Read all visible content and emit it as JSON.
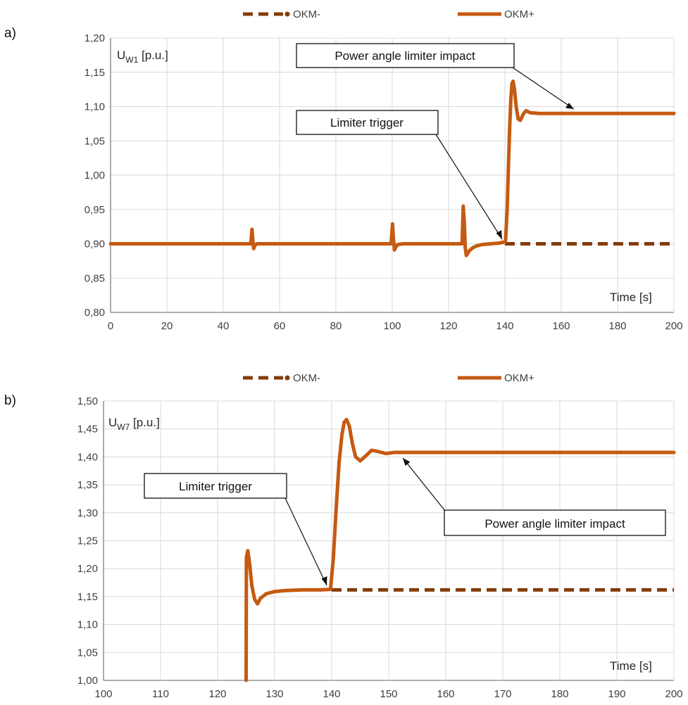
{
  "colors": {
    "okm_minus": "#843C0C",
    "okm_plus": "#C55A11",
    "grid": "#D9D9D9",
    "axis": "#7F7F7F"
  },
  "chart_data": [
    {
      "type": "line",
      "panel_label": "a)",
      "ylabel_main": "U",
      "ylabel_sub": "W1",
      "ylabel_unit": " [p.u.]",
      "xlabel": "Time [s]",
      "xlim": [
        0,
        200
      ],
      "ylim": [
        0.8,
        1.2
      ],
      "xticks": [
        0,
        20,
        40,
        60,
        80,
        100,
        120,
        140,
        160,
        180,
        200
      ],
      "yticks": [
        0.8,
        0.85,
        0.9,
        0.95,
        1.0,
        1.05,
        1.1,
        1.15,
        1.2
      ],
      "ytick_labels": [
        "0,80",
        "0,85",
        "0,90",
        "0,95",
        "1,00",
        "1,05",
        "1,10",
        "1,15",
        "1,20"
      ],
      "grid": true,
      "legend": [
        "OKM-",
        "OKM+"
      ],
      "legend_position": "top",
      "series": [
        {
          "name": "OKM-",
          "style": "dashed",
          "x": [
            140,
            200
          ],
          "y": [
            0.9,
            0.9
          ]
        },
        {
          "name": "OKM+",
          "style": "solid",
          "x": [
            0,
            49.8,
            50.2,
            50.5,
            50.8,
            51.3,
            52,
            99.6,
            100.1,
            100.4,
            100.8,
            101.2,
            102,
            104,
            124.8,
            125.2,
            125.6,
            125.9,
            126.3,
            126.8,
            127.4,
            128.5,
            130,
            132,
            135,
            138,
            140.2,
            140.8,
            141.3,
            141.7,
            142.1,
            142.5,
            142.9,
            143.4,
            144,
            144.7,
            145.5,
            146.5,
            147.5,
            149,
            152,
            200
          ],
          "y": [
            0.9,
            0.9,
            0.921,
            0.905,
            0.893,
            0.898,
            0.9,
            0.9,
            0.929,
            0.908,
            0.891,
            0.895,
            0.899,
            0.9,
            0.9,
            0.955,
            0.93,
            0.895,
            0.883,
            0.886,
            0.89,
            0.894,
            0.897,
            0.899,
            0.9,
            0.901,
            0.903,
            0.95,
            1.02,
            1.07,
            1.11,
            1.133,
            1.137,
            1.125,
            1.1,
            1.082,
            1.08,
            1.089,
            1.094,
            1.091,
            1.09,
            1.09
          ]
        }
      ],
      "annotations": [
        {
          "text": "Power angle limiter impact",
          "target": [
            166,
            1.09
          ]
        },
        {
          "text": "Limiter trigger",
          "target": [
            140,
            0.902
          ]
        }
      ]
    },
    {
      "type": "line",
      "panel_label": "b)",
      "ylabel_main": "U",
      "ylabel_sub": "W7",
      "ylabel_unit": " [p.u.]",
      "xlabel": "Time [s]",
      "xlim": [
        100,
        200
      ],
      "ylim": [
        1.0,
        1.5
      ],
      "xticks": [
        100,
        110,
        120,
        130,
        140,
        150,
        160,
        170,
        180,
        190,
        200
      ],
      "yticks": [
        1.0,
        1.05,
        1.1,
        1.15,
        1.2,
        1.25,
        1.3,
        1.35,
        1.4,
        1.45,
        1.5
      ],
      "ytick_labels": [
        "1,00",
        "1,05",
        "1,10",
        "1,15",
        "1,20",
        "1,25",
        "1,30",
        "1,35",
        "1,40",
        "1,45",
        "1,50"
      ],
      "grid": true,
      "legend": [
        "OKM-",
        "OKM+"
      ],
      "legend_position": "top",
      "series": [
        {
          "name": "OKM-",
          "style": "dashed",
          "x": [
            140,
            200
          ],
          "y": [
            1.162,
            1.162
          ]
        },
        {
          "name": "OKM+",
          "style": "solid",
          "x": [
            125,
            125.05,
            125.3,
            125.6,
            126,
            126.5,
            127,
            127.5,
            128.5,
            130,
            132,
            135,
            138,
            139.8,
            140.3,
            140.8,
            141.3,
            141.8,
            142.2,
            142.6,
            143.1,
            143.6,
            144.2,
            145,
            146,
            147,
            148,
            149.5,
            151,
            200
          ],
          "y": [
            1.0,
            1.22,
            1.232,
            1.21,
            1.17,
            1.145,
            1.137,
            1.147,
            1.155,
            1.159,
            1.161,
            1.162,
            1.162,
            1.163,
            1.22,
            1.31,
            1.39,
            1.44,
            1.462,
            1.467,
            1.455,
            1.425,
            1.4,
            1.393,
            1.402,
            1.412,
            1.41,
            1.406,
            1.408,
            1.408
          ]
        }
      ],
      "annotations": [
        {
          "text": "Limiter trigger",
          "target": [
            140,
            1.162
          ]
        },
        {
          "text": "Power angle limiter impact",
          "target": [
            151.5,
            1.407
          ]
        }
      ]
    }
  ]
}
